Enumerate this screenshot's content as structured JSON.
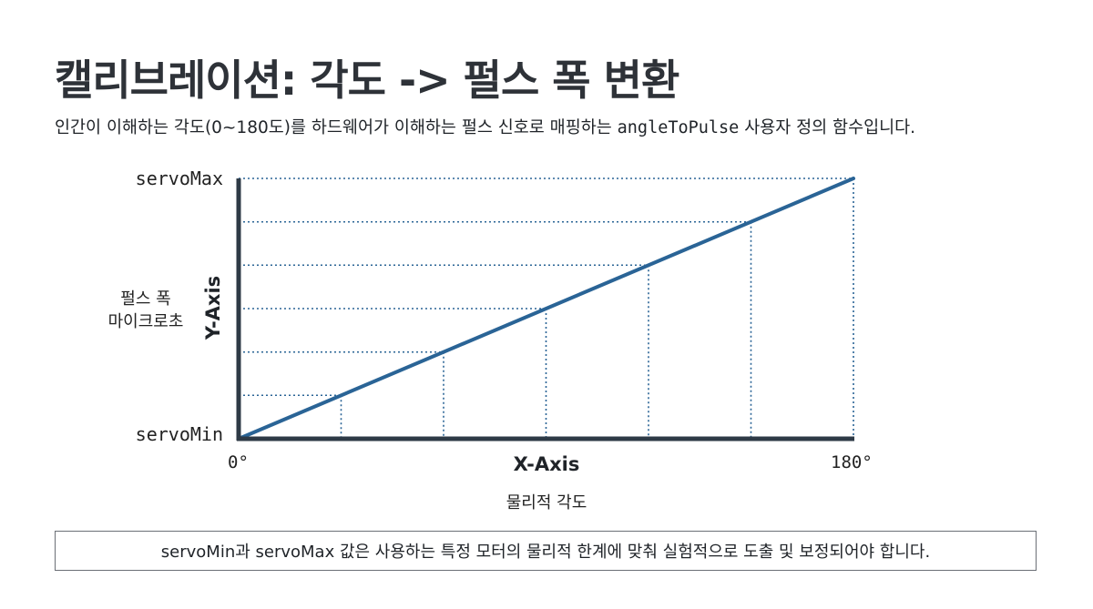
{
  "title": "캘리브레이션: 각도 -> 펄스 폭 변환",
  "subtitle": {
    "pre": "인간이 이해하는 각도(0~180도)를 하드웨어가 이해하는 펄스 신호로 매핑하는 ",
    "code": "angleToPulse",
    "post": " 사용자 정의 함수입니다."
  },
  "note": "servoMin과 servoMax 값은 사용하는 특정 모터의 물리적 한계에 맞춰 실험적으로 도출 및 보정되어야 합니다.",
  "colors": {
    "line": "#2a6496",
    "axis": "#2e3a46",
    "guide": "#2a6496"
  },
  "chart_data": {
    "type": "line",
    "xlabel": "X-Axis",
    "xlabel_sub": "물리적 각도",
    "ylabel": "Y-Axis",
    "ylabel_sub": [
      "펄스 폭",
      "마이크로초"
    ],
    "x_tick_labels": [
      "0°",
      "180°"
    ],
    "y_tick_labels": [
      "servoMin",
      "servoMax"
    ],
    "xlim": [
      0,
      180
    ],
    "ylim": [
      0,
      1
    ],
    "series": [
      {
        "x": [
          0,
          180
        ],
        "y": [
          0,
          1
        ]
      }
    ],
    "guide_points": [
      {
        "x": 30,
        "y": 0.167
      },
      {
        "x": 60,
        "y": 0.333
      },
      {
        "x": 90,
        "y": 0.5
      },
      {
        "x": 120,
        "y": 0.667
      },
      {
        "x": 150,
        "y": 0.833
      },
      {
        "x": 180,
        "y": 1
      }
    ],
    "grid": false,
    "legend": "none"
  }
}
